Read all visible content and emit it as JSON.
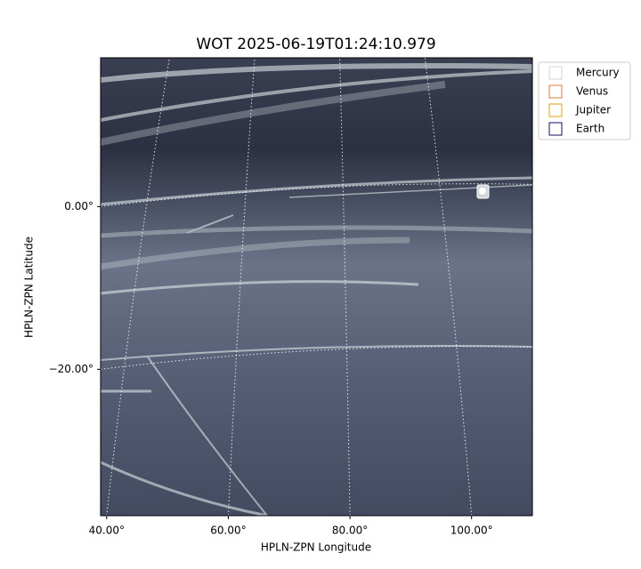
{
  "chart_data": {
    "type": "image",
    "title": "WOT 2025-06-19T01:24:10.979",
    "x_label": "HPLN-ZPN Longitude",
    "y_label": "HPLN-ZPN Latitude",
    "xlim": [
      39,
      110
    ],
    "ylim": [
      -38,
      18.3
    ],
    "xticks": [
      {
        "value": 40,
        "label": "40.00°"
      },
      {
        "value": 60,
        "label": "60.00°"
      },
      {
        "value": 80,
        "label": "80.00°"
      },
      {
        "value": 100,
        "label": "100.00°"
      }
    ],
    "yticks": [
      {
        "value": 0,
        "label": "0.00°"
      },
      {
        "value": -20,
        "label": "−20.00°"
      }
    ],
    "grid": true,
    "legend": [
      {
        "name": "Mercury",
        "color": "#d3d3d3"
      },
      {
        "name": "Venus",
        "color": "#e07b39"
      },
      {
        "name": "Jupiter",
        "color": "#e0a300"
      },
      {
        "name": "Earth",
        "color": "#101060"
      }
    ]
  }
}
